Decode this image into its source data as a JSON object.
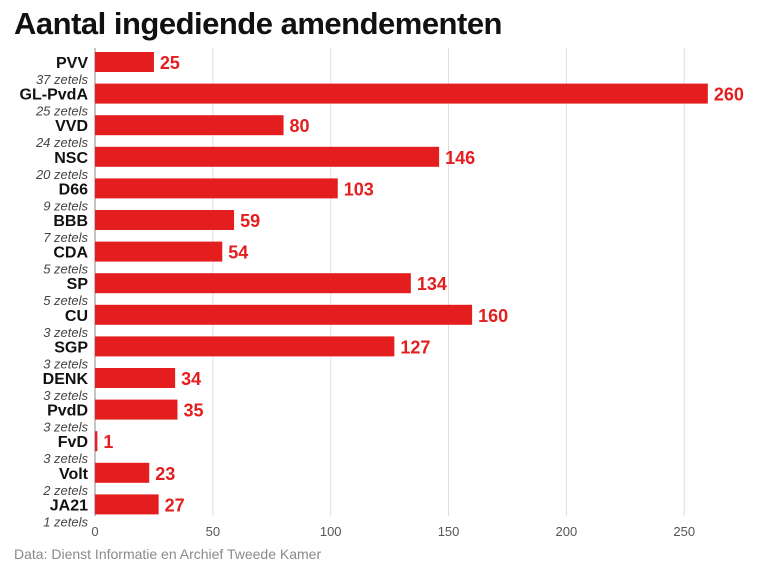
{
  "title": "Aantal ingediende amendementen",
  "source": "Data: Dienst Informatie en Archief Tweede Kamer",
  "colors": {
    "bar": "#e41e1e",
    "grid": "#dddddd",
    "axis": "#888888"
  },
  "chart_data": {
    "type": "bar",
    "orientation": "horizontal",
    "title": "Aantal ingediende amendementen",
    "categories": [
      "PVV",
      "GL-PvdA",
      "VVD",
      "NSC",
      "D66",
      "BBB",
      "CDA",
      "SP",
      "CU",
      "SGP",
      "DENK",
      "PvdD",
      "FvD",
      "Volt",
      "JA21"
    ],
    "subtitles": [
      "37 zetels",
      "25 zetels",
      "24 zetels",
      "20 zetels",
      "9 zetels",
      "7 zetels",
      "5 zetels",
      "5 zetels",
      "3 zetels",
      "3 zetels",
      "3 zetels",
      "3 zetels",
      "3 zetels",
      "2 zetels",
      "1 zetels"
    ],
    "values": [
      25,
      260,
      80,
      146,
      103,
      59,
      54,
      134,
      160,
      127,
      34,
      35,
      1,
      23,
      27
    ],
    "xticks": [
      0,
      50,
      100,
      150,
      200,
      250
    ],
    "xlim": [
      0,
      280
    ],
    "grid": true,
    "data_labels": true
  }
}
